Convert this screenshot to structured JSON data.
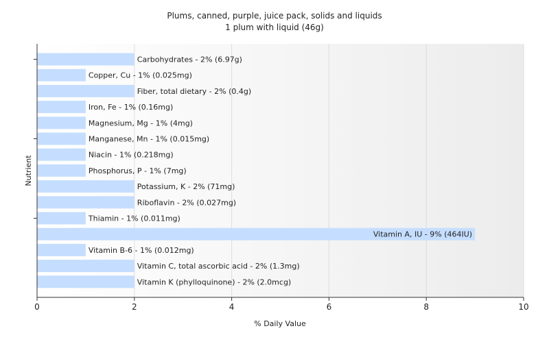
{
  "chart_data": {
    "type": "bar",
    "orientation": "horizontal",
    "title": "Plums, canned, purple, juice pack, solids and liquids",
    "subtitle": "1 plum with liquid (46g)",
    "xlabel": "% Daily Value",
    "ylabel": "Nutrient",
    "xlim": [
      0,
      10
    ],
    "xticks": [
      0,
      2,
      4,
      6,
      8,
      10
    ],
    "grid": true,
    "bar_color": "#c5deff",
    "categories": [
      "Carbohydrates",
      "Copper, Cu",
      "Fiber, total dietary",
      "Iron, Fe",
      "Magnesium, Mg",
      "Manganese, Mn",
      "Niacin",
      "Phosphorus, P",
      "Potassium, K",
      "Riboflavin",
      "Thiamin",
      "Vitamin A, IU",
      "Vitamin B-6",
      "Vitamin C, total ascorbic acid",
      "Vitamin K (phylloquinone)"
    ],
    "values": [
      2,
      1,
      2,
      1,
      1,
      1,
      1,
      1,
      2,
      2,
      1,
      9,
      1,
      2,
      2
    ],
    "labels": [
      "Carbohydrates - 2% (6.97g)",
      "Copper, Cu - 1% (0.025mg)",
      "Fiber, total dietary - 2% (0.4g)",
      "Iron, Fe - 1% (0.16mg)",
      "Magnesium, Mg - 1% (4mg)",
      "Manganese, Mn - 1% (0.015mg)",
      "Niacin - 1% (0.218mg)",
      "Phosphorus, P - 1% (7mg)",
      "Potassium, K - 2% (71mg)",
      "Riboflavin - 2% (0.027mg)",
      "Thiamin - 1% (0.011mg)",
      "Vitamin A, IU - 9% (464IU)",
      "Vitamin B-6 - 1% (0.012mg)",
      "Vitamin C, total ascorbic acid - 2% (1.3mg)",
      "Vitamin K (phylloquinone) - 2% (2.0mcg)"
    ]
  }
}
